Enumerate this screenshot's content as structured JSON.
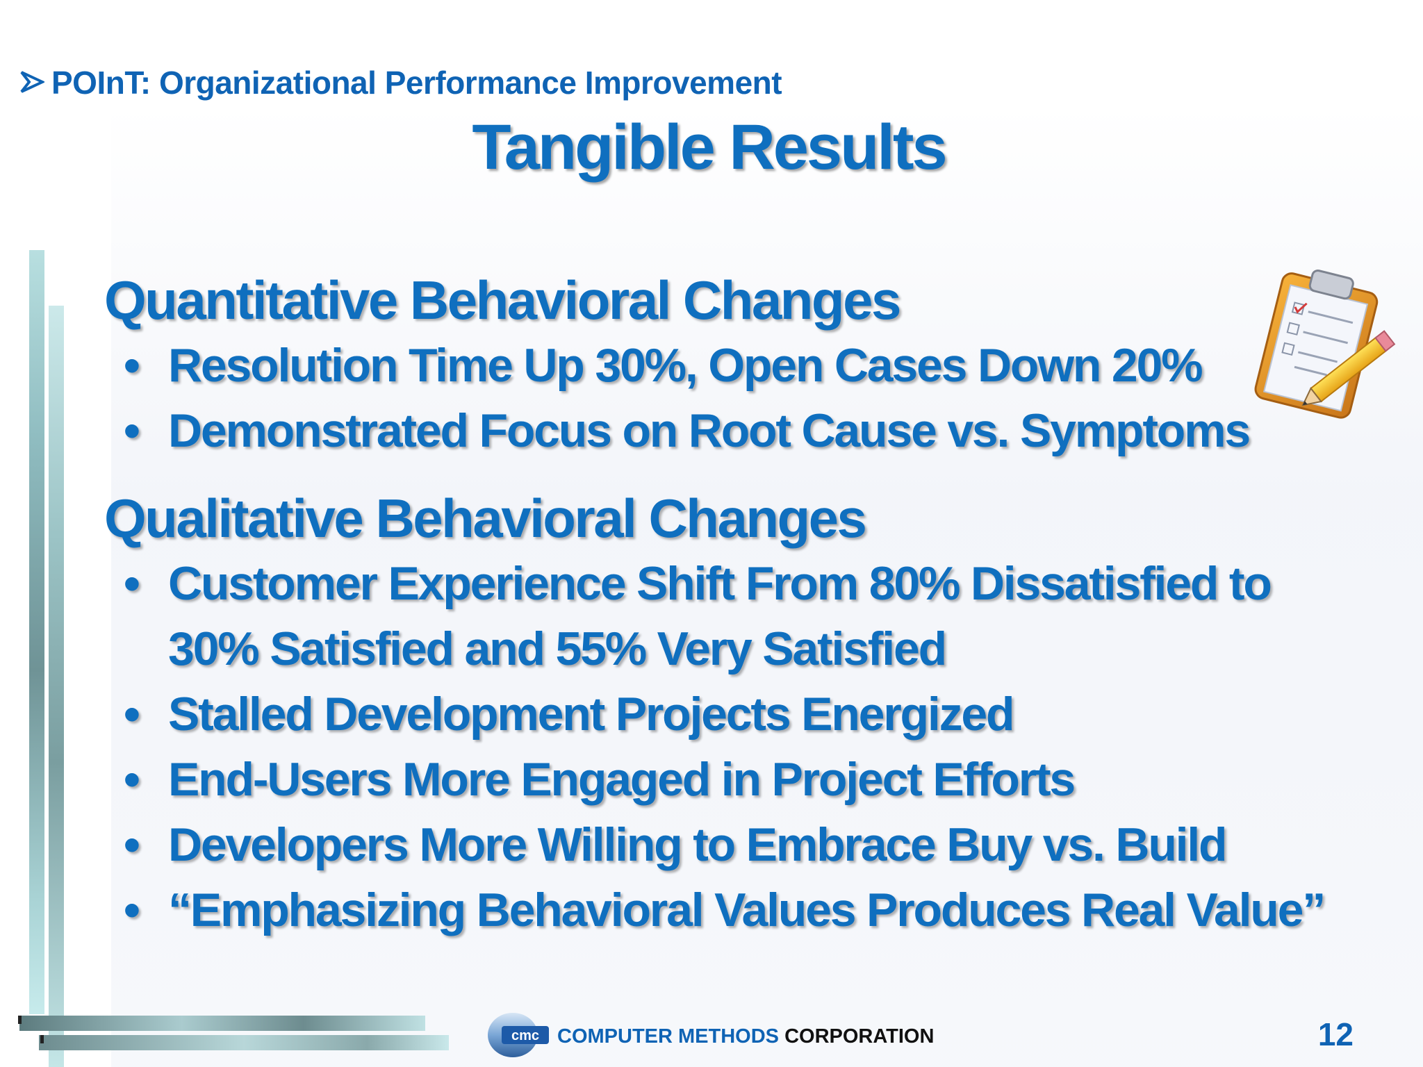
{
  "header": {
    "section": "POInT: Organizational Performance Improvement",
    "arrow_icon": "arrow-bullet-icon"
  },
  "title": "Tangible Results",
  "quantitative": {
    "heading": "Quantitative Behavioral Changes",
    "items": [
      "Resolution Time Up 30%, Open Cases Down 20%",
      "Demonstrated Focus on Root Cause vs. Symptoms"
    ]
  },
  "qualitative": {
    "heading": "Qualitative Behavioral Changes",
    "items": [
      "Customer Experience Shift From 80% Dissatisfied to 30% Satisfied and 55% Very Satisfied",
      "Stalled Development Projects Energized",
      "End-Users More Engaged in Project Efforts",
      "Developers More Willing to Embrace Buy vs. Build",
      "“Emphasizing Behavioral Values Produces Real Value”"
    ]
  },
  "footer": {
    "logo_text": "cmc",
    "company_blue": "COMPUTER METHODS",
    "company_black": "CORPORATION",
    "page_number": "12"
  },
  "colors": {
    "primary_blue": "#0f6fbf",
    "bar_teal": "#8fbcc0"
  },
  "icons": [
    "clipboard-checklist-icon",
    "pencil-icon",
    "cmc-logo-icon"
  ]
}
